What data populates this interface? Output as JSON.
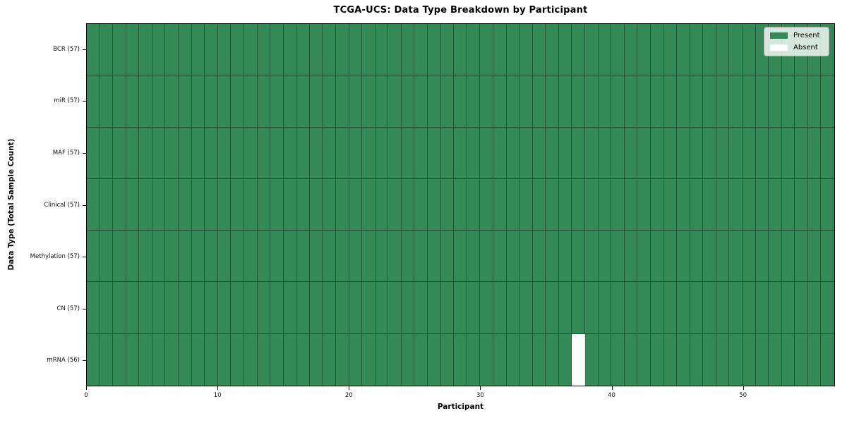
{
  "figure": {
    "title": "TCGA-UCS: Data Type Breakdown by Participant",
    "xlabel": "Participant",
    "ylabel": "Data Type (Total Sample Count)"
  },
  "legend": {
    "items": [
      {
        "name": "present",
        "label": "Present",
        "color": "#338a57"
      },
      {
        "name": "absent",
        "label": "Absent",
        "color": "#ffffff"
      }
    ]
  },
  "chart_data": {
    "type": "heatmap",
    "title": "TCGA-UCS: Data Type Breakdown by Participant",
    "xlabel": "Participant",
    "ylabel": "Data Type (Total Sample Count)",
    "x_range": [
      0,
      57
    ],
    "n_participants": 57,
    "x_ticks": [
      0,
      10,
      20,
      30,
      40,
      50
    ],
    "rows": [
      {
        "label": "BCR (57)",
        "data_type": "BCR",
        "count": 57,
        "absent_participants": []
      },
      {
        "label": "miR (57)",
        "data_type": "miR",
        "count": 57,
        "absent_participants": []
      },
      {
        "label": "MAF (57)",
        "data_type": "MAF",
        "count": 57,
        "absent_participants": []
      },
      {
        "label": "Clinical (57)",
        "data_type": "Clinical",
        "count": 57,
        "absent_participants": []
      },
      {
        "label": "Methylation (57)",
        "data_type": "Methylation",
        "count": 57,
        "absent_participants": []
      },
      {
        "label": "CN (57)",
        "data_type": "CN",
        "count": 57,
        "absent_participants": []
      },
      {
        "label": "mRNA (56)",
        "data_type": "mRNA",
        "count": 56,
        "absent_participants": [
          37
        ]
      }
    ],
    "colors": {
      "present": "#338a57",
      "absent": "#ffffff",
      "grid_line": "rgba(0,0,0,0.4)",
      "spine": "#000000"
    },
    "legend_entries": [
      "Present",
      "Absent"
    ],
    "legend_position": "upper right",
    "grid": true
  }
}
